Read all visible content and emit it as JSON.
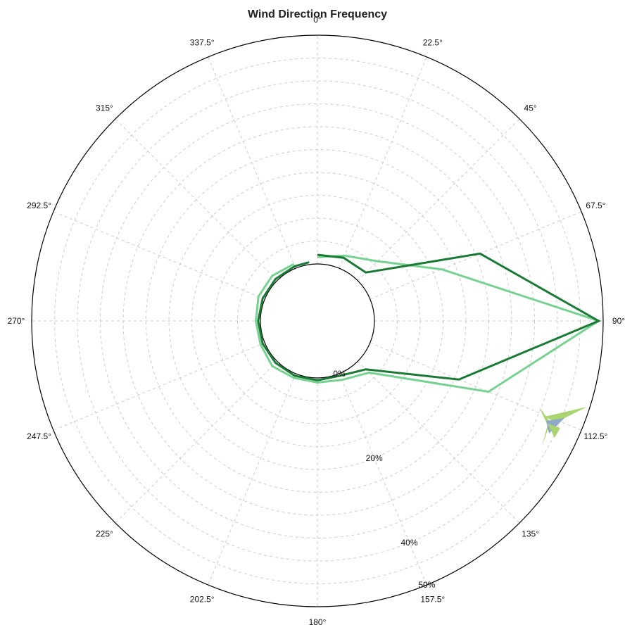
{
  "chart_data": {
    "type": "line",
    "subtype": "polar-radar",
    "title": "Wind Direction Frequency",
    "directions": [
      "0°",
      "22.5°",
      "45°",
      "67.5°",
      "90°",
      "112.5°",
      "135°",
      "157.5°",
      "180°",
      "202.5°",
      "225°",
      "247.5°",
      "270°",
      "292.5°",
      "315°",
      "337.5°"
    ],
    "radial_axis": {
      "unit": "%",
      "range": [
        0,
        50
      ],
      "tick_labels": [
        "0%",
        "20%",
        "40%",
        "50%"
      ],
      "tick_values": [
        0,
        20,
        40,
        50
      ],
      "grid_rings": [
        5,
        10,
        15,
        20,
        25,
        30,
        35,
        40,
        45
      ],
      "label_angle_deg": 157.5
    },
    "grid": true,
    "series": [
      {
        "color": "#1a7a35",
        "angles": [
          0,
          22.5,
          45,
          67.5,
          90,
          112.5,
          135,
          157.5,
          180,
          202.5,
          225,
          247.5,
          270,
          292.5,
          315,
          337.5,
          352
        ],
        "values": [
          2,
          2.5,
          2.5,
          26,
          49,
          21,
          2.5,
          0.5,
          0.5,
          0.5,
          0.5,
          0.5,
          0.5,
          0.5,
          0.5,
          0.5,
          0.5
        ]
      },
      {
        "color": "#77d191",
        "angles": [
          0,
          22.5,
          45,
          67.5,
          90,
          112.5,
          135,
          157.5,
          180,
          202.5,
          225,
          247.5,
          270,
          292.5,
          315,
          337.5
        ],
        "values": [
          1.5,
          3,
          6,
          17,
          49,
          28,
          3.5,
          1.5,
          1,
          1,
          1.5,
          1,
          1,
          1.5,
          1.5,
          1
        ]
      }
    ],
    "colors": {
      "outline": "#000000",
      "grid": "#cccccc",
      "logo_green": "#a9d46f",
      "logo_blue": "#8fa9c9"
    },
    "logo": "wind-compass-logo"
  }
}
